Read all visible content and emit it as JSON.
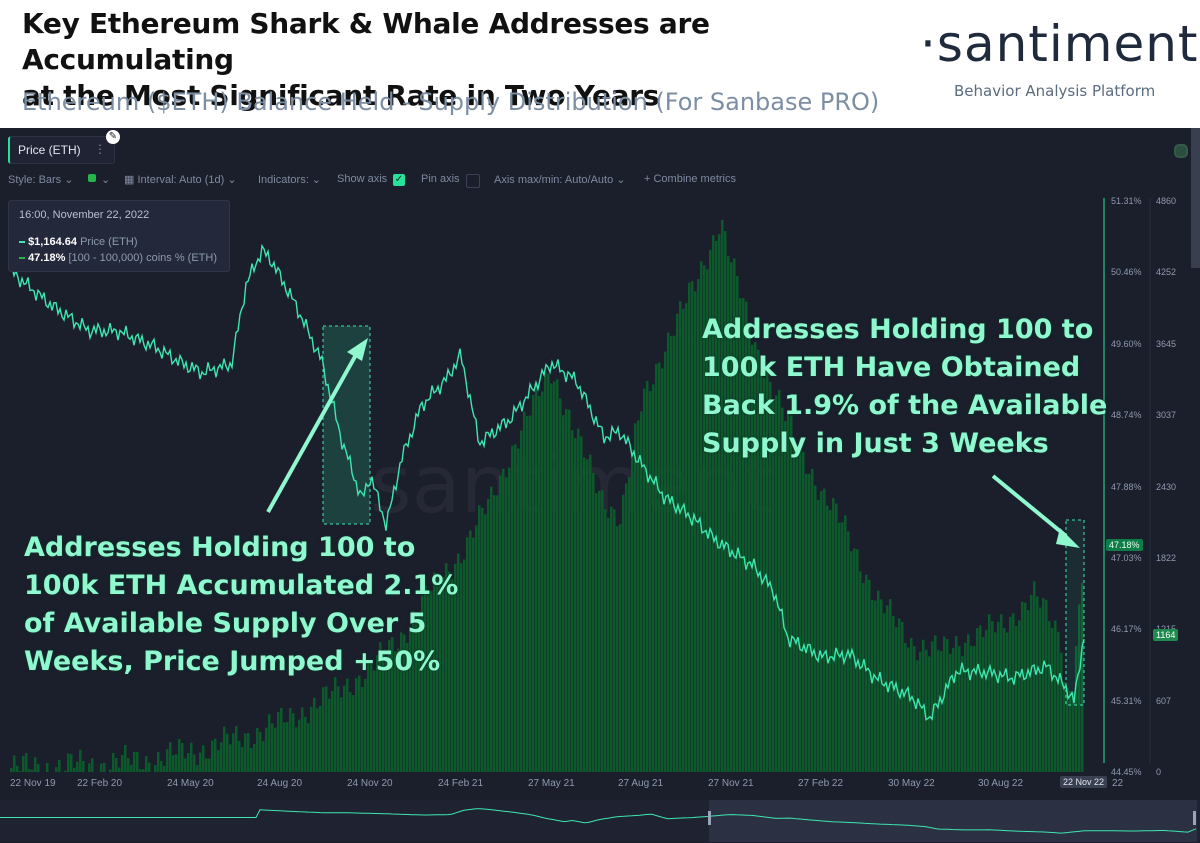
{
  "header": {
    "title_line1": "Key Ethereum Shark & Whale Addresses are Accumulating",
    "title_line2": "at the Most Significant Rate in Two Years",
    "subtitle": "Ethereum ($ETH) Balance Held - Supply Distribution (For Sanbase PRO)",
    "brand": "·santiment·",
    "tagline": "Behavior Analysis Platform"
  },
  "toolbar": {
    "metric_chip": "Price (ETH)",
    "style_label": "Style: Bars",
    "interval_label": "Interval: Auto (1d)",
    "indicators_label": "Indicators:",
    "show_axis_label": "Show axis",
    "pin_axis_label": "Pin axis",
    "axis_minmax_label": "Axis max/min: Auto/Auto",
    "combine_label": "+ Combine metrics",
    "accent_color": "#26e29a"
  },
  "tooltip": {
    "date": "16:00, November 22, 2022",
    "price_value": "$1,164.64",
    "price_name": "Price (ETH)",
    "supply_value": "47.18%",
    "supply_name": "[100 - 100,000) coins % (ETH)"
  },
  "annotations": {
    "left": [
      "Addresses Holding 100 to",
      "100k ETH Accumulated 2.1%",
      "of Available Supply Over 5",
      "Weeks, Price Jumped +50%"
    ],
    "right": [
      "Addresses Holding 100 to",
      "100k ETH Have Obtained",
      "Back 1.9% of the Available",
      "Supply in Just 3 Weeks"
    ]
  },
  "watermark": "santiment",
  "badges": {
    "supply_current": "47.18%",
    "price_current": "1164",
    "last_date": "22 Nov 22",
    "last_date_suffix": "22"
  },
  "colors": {
    "background": "#1b1e2b",
    "supply_bars": "#0c5a2c",
    "price_line": "#3ee6b0",
    "annotation_text": "#8ff8cf"
  },
  "chart_data": {
    "type": "line",
    "x_ticks": [
      "22 Nov 19",
      "22 Feb 20",
      "24 May 20",
      "24 Aug 20",
      "24 Nov 20",
      "24 Feb 21",
      "27 May 21",
      "27 Aug 21",
      "27 Nov 21",
      "27 Feb 22",
      "30 May 22",
      "30 Aug 22",
      "22 Nov 22"
    ],
    "y_ticks_supply": [
      "51.31%",
      "50.46%",
      "49.60%",
      "48.74%",
      "47.88%",
      "47.03%",
      "46.17%",
      "45.31%",
      "44.45%"
    ],
    "y_ticks_price": [
      "4860",
      "4252",
      "3645",
      "3037",
      "2430",
      "1822",
      "1215",
      "607",
      "0"
    ],
    "ylim_supply": [
      44.45,
      51.31
    ],
    "ylim_price": [
      0,
      4860
    ],
    "series": [
      {
        "name": "[100 - 100,000) coins % (ETH)",
        "type": "bars",
        "x": [
          "2019-11-22",
          "2020-01-10",
          "2020-02-22",
          "2020-04-10",
          "2020-05-24",
          "2020-07-10",
          "2020-08-24",
          "2020-10-10",
          "2020-11-24",
          "2020-12-25",
          "2021-01-15",
          "2021-02-24",
          "2021-03-25",
          "2021-04-15",
          "2021-05-10",
          "2021-05-27",
          "2021-06-20",
          "2021-07-15",
          "2021-08-05",
          "2021-08-27",
          "2021-09-20",
          "2021-10-20",
          "2021-11-15",
          "2021-11-27",
          "2021-12-20",
          "2022-01-20",
          "2022-02-27",
          "2022-03-25",
          "2022-04-25",
          "2022-05-30",
          "2022-06-30",
          "2022-07-30",
          "2022-08-30",
          "2022-09-30",
          "2022-10-31",
          "2022-11-01",
          "2022-11-10",
          "2022-11-22"
        ],
        "values": [
          44.5,
          44.52,
          44.55,
          44.6,
          44.7,
          44.85,
          45.05,
          45.35,
          45.7,
          46.1,
          46.5,
          47.1,
          47.7,
          48.3,
          48.9,
          49.3,
          48.5,
          47.8,
          47.5,
          48.9,
          49.6,
          50.3,
          51.1,
          50.5,
          49.6,
          48.7,
          47.8,
          47.3,
          46.5,
          46.0,
          45.9,
          46.1,
          46.2,
          46.6,
          46.0,
          45.35,
          45.6,
          47.18
        ]
      },
      {
        "name": "Price (ETH)",
        "type": "line",
        "x": [
          "2019-11-22",
          "2019-12-10",
          "2020-01-05",
          "2020-01-25",
          "2020-02-10",
          "2020-03-12",
          "2020-04-15",
          "2020-05-15",
          "2020-06-05",
          "2020-07-05",
          "2020-07-20",
          "2020-08-05",
          "2020-08-15",
          "2020-09-10",
          "2020-10-05",
          "2020-10-25",
          "2020-11-15",
          "2020-11-24",
          "2020-12-10",
          "2020-12-25",
          "2021-01-15",
          "2021-02-10",
          "2021-02-24",
          "2021-03-15",
          "2021-04-15",
          "2021-05-12",
          "2021-05-27",
          "2021-06-22",
          "2021-07-20",
          "2021-08-05",
          "2021-08-27",
          "2021-09-20",
          "2021-10-20",
          "2021-11-10",
          "2021-11-27",
          "2021-12-20",
          "2022-01-10",
          "2022-01-24",
          "2022-02-27",
          "2022-03-28",
          "2022-04-25",
          "2022-05-30",
          "2022-06-18",
          "2022-07-15",
          "2022-08-14",
          "2022-09-10",
          "2022-10-15",
          "2022-11-05",
          "2022-11-12",
          "2022-11-22"
        ],
        "values": [
          4270,
          4140,
          3960,
          3850,
          3760,
          3750,
          3630,
          3480,
          3400,
          3470,
          4150,
          4440,
          4350,
          3950,
          3500,
          2840,
          2320,
          2520,
          2100,
          2650,
          3120,
          3350,
          3550,
          2800,
          3000,
          3300,
          3480,
          3330,
          2850,
          2900,
          2620,
          2340,
          2150,
          1980,
          1880,
          1750,
          1530,
          1140,
          980,
          1000,
          790,
          640,
          460,
          860,
          850,
          800,
          900,
          700,
          600,
          1164.64
        ]
      }
    ]
  }
}
